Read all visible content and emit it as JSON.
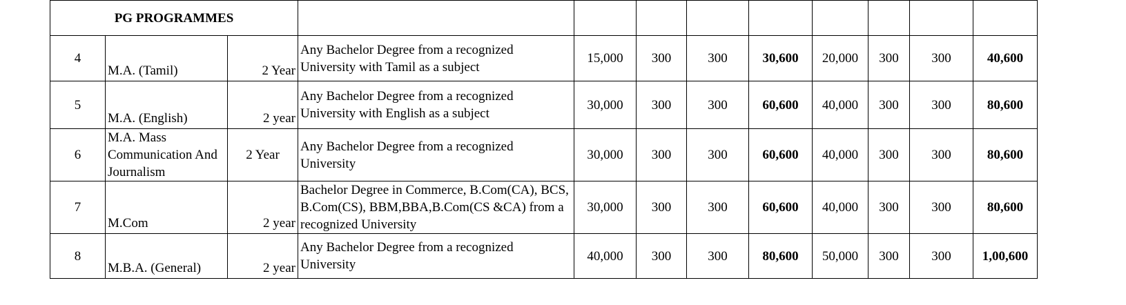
{
  "section_title": "PG PROGRAMMES",
  "rows": [
    {
      "no": "4",
      "course": "M.A. (Tamil)",
      "duration": "2 Year",
      "eligibility": "Any Bachelor Degree from a recognized University with Tamil as a subject",
      "f1": "15,000",
      "f2": "300",
      "f3": "300",
      "t1": "30,600",
      "f4": "20,000",
      "f5": "300",
      "f6": "300",
      "t2": "40,600"
    },
    {
      "no": "5",
      "course": "M.A. (English)",
      "duration": "2 year",
      "eligibility": "Any Bachelor Degree from a recognized University with English as a subject",
      "f1": "30,000",
      "f2": "300",
      "f3": "300",
      "t1": "60,600",
      "f4": "40,000",
      "f5": "300",
      "f6": "300",
      "t2": "80,600"
    },
    {
      "no": "6",
      "course": "M.A. Mass Communication And Journalism",
      "duration": "2 Year",
      "eligibility": "Any Bachelor Degree from a recognized University",
      "f1": "30,000",
      "f2": "300",
      "f3": "300",
      "t1": "60,600",
      "f4": "40,000",
      "f5": "300",
      "f6": "300",
      "t2": "80,600"
    },
    {
      "no": "7",
      "course": "M.Com",
      "duration": "2 year",
      "eligibility": "Bachelor Degree in Commerce, B.Com(CA), BCS, B.Com(CS), BBM,BBA,B.Com(CS &CA) from a recognized University",
      "f1": "30,000",
      "f2": "300",
      "f3": "300",
      "t1": "60,600",
      "f4": "40,000",
      "f5": "300",
      "f6": "300",
      "t2": "80,600"
    },
    {
      "no": "8",
      "course": "M.B.A. (General)",
      "duration": "2 year",
      "eligibility": "Any Bachelor Degree from a recognized University",
      "f1": "40,000",
      "f2": "300",
      "f3": "300",
      "t1": "80,600",
      "f4": "50,000",
      "f5": "300",
      "f6": "300",
      "t2": "1,00,600"
    }
  ]
}
